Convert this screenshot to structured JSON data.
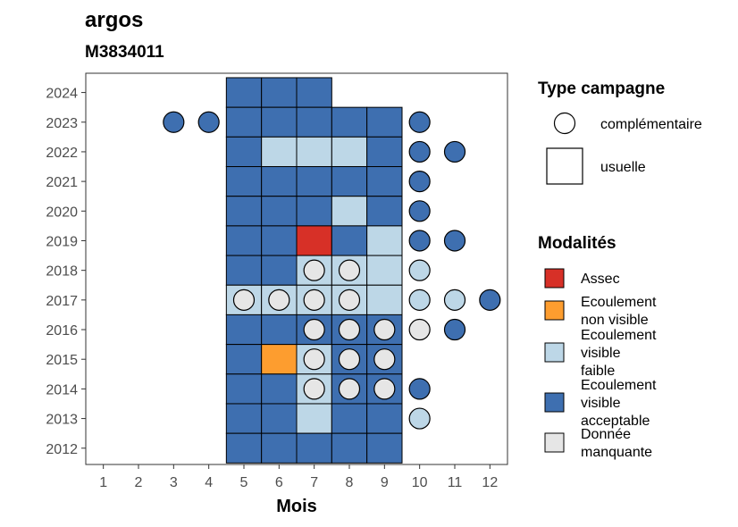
{
  "chart_data": {
    "type": "heatmap",
    "title": "argos",
    "subtitle": "M3834011",
    "xlabel": "Mois",
    "ylabel": "",
    "x_ticks": [
      1,
      2,
      3,
      4,
      5,
      6,
      7,
      8,
      9,
      10,
      11,
      12
    ],
    "y_ticks": [
      2012,
      2013,
      2014,
      2015,
      2016,
      2017,
      2018,
      2019,
      2020,
      2021,
      2022,
      2023,
      2024
    ],
    "xlim": [
      0.5,
      12.5
    ],
    "ylim": [
      2011.45,
      2024.65
    ],
    "grid": false,
    "legend_placement": "right",
    "legend_shape_title": "Type campagne",
    "legend_shapes": [
      {
        "key": "complementaire",
        "label": "complémentaire",
        "shape": "circle"
      },
      {
        "key": "usuelle",
        "label": "usuelle",
        "shape": "square"
      }
    ],
    "legend_mod_title": "Modalités",
    "modalities": [
      {
        "key": "assec",
        "lines": [
          "Assec"
        ],
        "color": "#d73027"
      },
      {
        "key": "nonvisible",
        "lines": [
          "Ecoulement",
          "non visible"
        ],
        "color": "#fd9d2f"
      },
      {
        "key": "faible",
        "lines": [
          "Ecoulement",
          "visible",
          "faible"
        ],
        "color": "#bdd7e7"
      },
      {
        "key": "acceptable",
        "lines": [
          "Ecoulement",
          "visible",
          "acceptable"
        ],
        "color": "#3e6fb0"
      },
      {
        "key": "manquante",
        "lines": [
          "Donnée",
          "manquante"
        ],
        "color": "#e6e6e6"
      }
    ],
    "usuelle": [
      {
        "year": 2024,
        "months": {
          "5": "acceptable",
          "6": "acceptable",
          "7": "acceptable"
        }
      },
      {
        "year": 2023,
        "months": {
          "5": "acceptable",
          "6": "acceptable",
          "7": "acceptable",
          "8": "acceptable",
          "9": "acceptable"
        }
      },
      {
        "year": 2022,
        "months": {
          "5": "acceptable",
          "6": "faible",
          "7": "faible",
          "8": "faible",
          "9": "acceptable"
        }
      },
      {
        "year": 2021,
        "months": {
          "5": "acceptable",
          "6": "acceptable",
          "7": "acceptable",
          "8": "acceptable",
          "9": "acceptable"
        }
      },
      {
        "year": 2020,
        "months": {
          "5": "acceptable",
          "6": "acceptable",
          "7": "acceptable",
          "8": "faible",
          "9": "acceptable"
        }
      },
      {
        "year": 2019,
        "months": {
          "5": "acceptable",
          "6": "acceptable",
          "7": "assec",
          "8": "acceptable",
          "9": "faible"
        }
      },
      {
        "year": 2018,
        "months": {
          "5": "acceptable",
          "6": "acceptable",
          "7": "faible",
          "8": "faible",
          "9": "faible"
        }
      },
      {
        "year": 2017,
        "months": {
          "5": "faible",
          "6": "faible",
          "7": "faible",
          "8": "faible",
          "9": "faible"
        }
      },
      {
        "year": 2016,
        "months": {
          "5": "acceptable",
          "6": "acceptable",
          "7": "acceptable",
          "8": "acceptable",
          "9": "acceptable"
        }
      },
      {
        "year": 2015,
        "months": {
          "5": "acceptable",
          "6": "nonvisible",
          "7": "faible",
          "8": "acceptable",
          "9": "acceptable"
        }
      },
      {
        "year": 2014,
        "months": {
          "5": "acceptable",
          "6": "acceptable",
          "7": "faible",
          "8": "acceptable",
          "9": "acceptable"
        }
      },
      {
        "year": 2013,
        "months": {
          "5": "acceptable",
          "6": "acceptable",
          "7": "faible",
          "8": "acceptable",
          "9": "acceptable"
        }
      },
      {
        "year": 2012,
        "months": {
          "5": "acceptable",
          "6": "acceptable",
          "7": "acceptable",
          "8": "acceptable",
          "9": "acceptable"
        }
      }
    ],
    "complementaire": [
      {
        "year": 2023,
        "months": {
          "3": "acceptable",
          "4": "acceptable",
          "10": "acceptable"
        }
      },
      {
        "year": 2022,
        "months": {
          "10": "acceptable",
          "11": "acceptable"
        }
      },
      {
        "year": 2021,
        "months": {
          "10": "acceptable"
        }
      },
      {
        "year": 2020,
        "months": {
          "10": "acceptable"
        }
      },
      {
        "year": 2019,
        "months": {
          "10": "acceptable",
          "11": "acceptable"
        }
      },
      {
        "year": 2018,
        "months": {
          "7": "manquante",
          "8": "manquante",
          "10": "faible"
        }
      },
      {
        "year": 2017,
        "months": {
          "5": "manquante",
          "6": "manquante",
          "7": "manquante",
          "8": "manquante",
          "10": "faible",
          "11": "faible",
          "12": "acceptable"
        }
      },
      {
        "year": 2016,
        "months": {
          "7": "manquante",
          "8": "manquante",
          "9": "manquante",
          "10": "manquante",
          "11": "acceptable"
        }
      },
      {
        "year": 2015,
        "months": {
          "7": "manquante",
          "8": "manquante",
          "9": "manquante"
        }
      },
      {
        "year": 2014,
        "months": {
          "7": "manquante",
          "8": "manquante",
          "9": "manquante",
          "10": "acceptable"
        }
      },
      {
        "year": 2013,
        "months": {
          "10": "faible"
        }
      }
    ]
  }
}
